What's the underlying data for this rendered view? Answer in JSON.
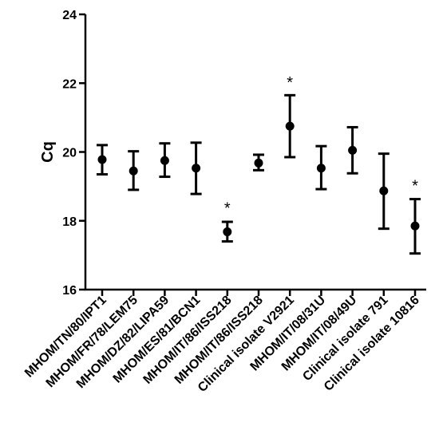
{
  "chart_data": {
    "type": "scatter",
    "title": "",
    "xlabel": "",
    "ylabel": "Cq",
    "ylim": [
      16,
      24
    ],
    "yticks": [
      16,
      18,
      20,
      22,
      24
    ],
    "grid": false,
    "categories": [
      "MHOM/TN/80/IPT1",
      "MHOM/FR/78/LEM75",
      "MHOM/DZ/82/LIPA59",
      "MHOM/ES/81/BCN1",
      "MHOM/IT/86/ISS218",
      "MHOM/IT/86/ISS218",
      "Clinical isolate V2921",
      "MHOM/IT/08/31U",
      "MHOM/IT/08/49U",
      "Clinical isolate 791",
      "Clinical isolate 10816"
    ],
    "series": [
      {
        "mean": [
          19.78,
          19.45,
          19.75,
          19.53,
          17.68,
          19.68,
          20.75,
          19.53,
          20.05,
          18.87,
          17.85
        ],
        "lower": [
          19.35,
          18.9,
          19.28,
          18.78,
          17.4,
          19.47,
          19.85,
          18.92,
          19.38,
          17.77,
          17.05
        ],
        "upper": [
          20.2,
          20.02,
          20.25,
          20.27,
          17.97,
          19.92,
          21.65,
          20.17,
          20.72,
          19.95,
          18.63
        ]
      }
    ],
    "annotations": [
      {
        "category_index": 4,
        "text": "*",
        "y": 18.45
      },
      {
        "category_index": 6,
        "text": "*",
        "y": 22.1
      },
      {
        "category_index": 10,
        "text": "*",
        "y": 19.1
      }
    ],
    "colors": {
      "marker": "#000000",
      "axis": "#000000"
    }
  }
}
